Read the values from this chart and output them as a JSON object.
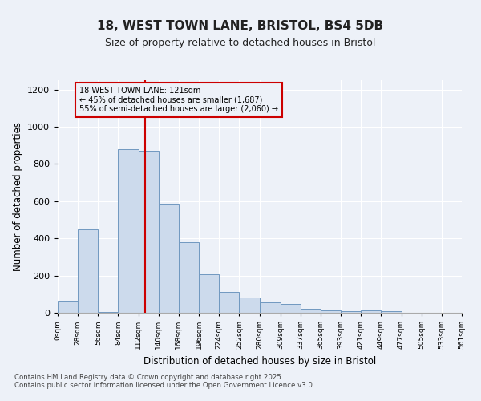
{
  "title": "18, WEST TOWN LANE, BRISTOL, BS4 5DB",
  "subtitle": "Size of property relative to detached houses in Bristol",
  "xlabel": "Distribution of detached houses by size in Bristol",
  "ylabel": "Number of detached properties",
  "bar_color": "#ccdaec",
  "bar_edge_color": "#7098c0",
  "background_color": "#edf1f8",
  "grid_color": "#ffffff",
  "annotation_box_color": "#cc0000",
  "vline_color": "#cc0000",
  "vline_x": 121,
  "annotation_title": "18 WEST TOWN LANE: 121sqm",
  "annotation_line1": "← 45% of detached houses are smaller (1,687)",
  "annotation_line2": "55% of semi-detached houses are larger (2,060) →",
  "bins": [
    0,
    28,
    56,
    84,
    112,
    140,
    168,
    196,
    224,
    252,
    280,
    309,
    337,
    365,
    393,
    421,
    449,
    477,
    505,
    533,
    561
  ],
  "counts": [
    65,
    450,
    5,
    880,
    870,
    585,
    380,
    205,
    110,
    80,
    55,
    47,
    20,
    15,
    7,
    13,
    7,
    2,
    1,
    2
  ],
  "ylim": [
    0,
    1250
  ],
  "yticks": [
    0,
    200,
    400,
    600,
    800,
    1000,
    1200
  ],
  "footnote1": "Contains HM Land Registry data © Crown copyright and database right 2025.",
  "footnote2": "Contains public sector information licensed under the Open Government Licence v3.0."
}
